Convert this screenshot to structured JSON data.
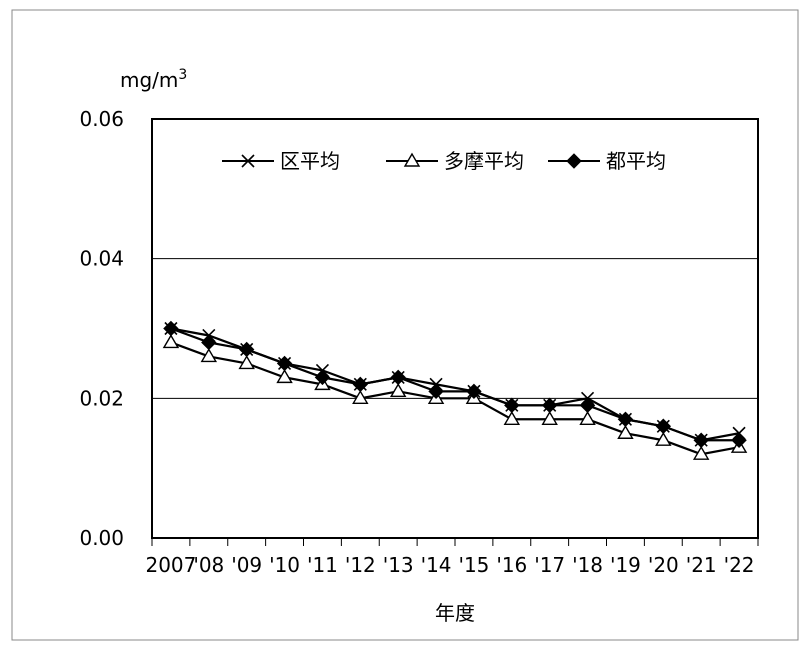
{
  "chart_data": {
    "type": "line",
    "unit_label": "mg/m",
    "unit_sup": "3",
    "xlabel": "年度",
    "ylim": [
      0,
      0.06
    ],
    "yticks": [
      "0.00",
      "0.02",
      "0.04",
      "0.06"
    ],
    "categories": [
      "2007",
      "'08",
      "'09",
      "'10",
      "'11",
      "'12",
      "'13",
      "'14",
      "'15",
      "'16",
      "'17",
      "'18",
      "'19",
      "'20",
      "'21",
      "'22"
    ],
    "grid": true,
    "legend_position": "top",
    "series": [
      {
        "name": "区平均",
        "marker": "cross",
        "values": [
          0.03,
          0.029,
          0.027,
          0.025,
          0.024,
          0.022,
          0.023,
          0.022,
          0.021,
          0.019,
          0.019,
          0.02,
          0.017,
          0.016,
          0.014,
          0.015
        ]
      },
      {
        "name": "多摩平均",
        "marker": "triangle",
        "values": [
          0.028,
          0.026,
          0.025,
          0.023,
          0.022,
          0.02,
          0.021,
          0.02,
          0.02,
          0.017,
          0.017,
          0.017,
          0.015,
          0.014,
          0.012,
          0.013
        ]
      },
      {
        "name": "都平均",
        "marker": "diamond",
        "values": [
          0.03,
          0.028,
          0.027,
          0.025,
          0.023,
          0.022,
          0.023,
          0.021,
          0.021,
          0.019,
          0.019,
          0.019,
          0.017,
          0.016,
          0.014,
          0.014
        ]
      }
    ]
  }
}
